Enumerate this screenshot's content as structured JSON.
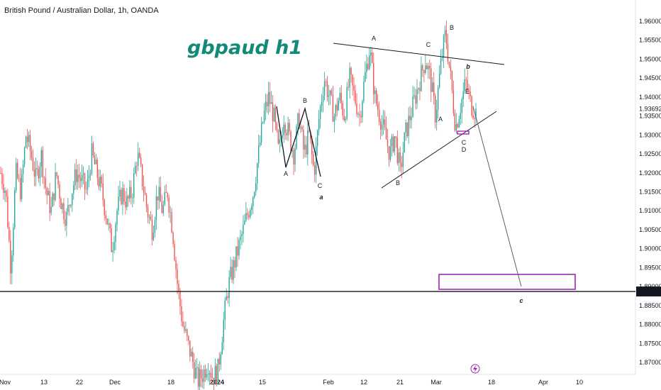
{
  "chart_data": {
    "type": "candlestick",
    "symbol_title": "British Pound / Australian Dollar, 1h, OANDA",
    "annotation_title": "gbpaud h1",
    "ylim": [
      1.865,
      1.962
    ],
    "y_ticks": [
      "1.96000",
      "1.95500",
      "1.95000",
      "1.94500",
      "1.94000",
      "1.93500",
      "1.93000",
      "1.92500",
      "1.92000",
      "1.91500",
      "1.91000",
      "1.90500",
      "1.90000",
      "1.89500",
      "1.89000",
      "1.88500",
      "1.88000",
      "1.87500",
      "1.87000"
    ],
    "y_tick_values": [
      1.96,
      1.955,
      1.95,
      1.945,
      1.94,
      1.935,
      1.93,
      1.925,
      1.92,
      1.915,
      1.91,
      1.905,
      1.9,
      1.895,
      1.89,
      1.885,
      1.88,
      1.875,
      1.87
    ],
    "x_ticks": [
      "Nov",
      "13",
      "22",
      "Dec",
      "18",
      "2024",
      "15",
      "Feb",
      "12",
      "21",
      "Mar",
      "18",
      "Apr",
      "10"
    ],
    "x_tick_bold": [
      false,
      false,
      false,
      false,
      false,
      true,
      false,
      false,
      false,
      false,
      false,
      false,
      false,
      false
    ],
    "current_price_label": "1.93692",
    "current_price": 1.93692,
    "horizontal_level_label": "1.88870",
    "horizontal_level": 1.8887,
    "path": [
      [
        1.92,
        1.915,
        1.895,
        1.92,
        1.915,
        1.93,
        1.925,
        1.918,
        1.925,
        1.915,
        1.91,
        1.92,
        1.912,
        1.908,
        1.915,
        1.92,
        1.918,
        1.915,
        1.925,
        1.92,
        1.915,
        1.908,
        1.9,
        1.91,
        1.915,
        1.912,
        1.915,
        1.925,
        1.918,
        1.91,
        1.905,
        1.915,
        1.91,
        1.915,
        1.905,
        1.89,
        1.88,
        1.875,
        1.87,
        1.865,
        1.867,
        1.87,
        1.866,
        1.868,
        1.88,
        1.89,
        1.895,
        1.9,
        1.905,
        1.91,
        1.915,
        1.925,
        1.935,
        1.94,
        1.935,
        1.925,
        1.935,
        1.93,
        1.925,
        1.935,
        1.925,
        1.93,
        1.92,
        1.935,
        1.945,
        1.94,
        1.935,
        1.94,
        1.935,
        1.945,
        1.94,
        1.935,
        1.945,
        1.953,
        1.94,
        1.935,
        1.93,
        1.925,
        1.93,
        1.92,
        1.93,
        1.935,
        1.94,
        1.945,
        1.95,
        1.945,
        1.935,
        1.948,
        1.957,
        1.945,
        1.932,
        1.938,
        1.944,
        1.938,
        1.936
      ]
    ],
    "wave_labels": {
      "left_A": "A",
      "left_B": "B",
      "left_C": "C",
      "a": "a",
      "tri_A": "A",
      "tri_B": "B",
      "tri_C": "C",
      "tri_D": "D",
      "tri_E": "E",
      "top_B": "B",
      "mid_A": "A",
      "b": "b",
      "c": "c"
    },
    "target_zone": [
      1.8893,
      1.8932
    ],
    "colors": {
      "up": "#26a69a",
      "down": "#ef5350",
      "wave_red": "#f23645",
      "wave_teal": "#138a78",
      "target": "#9c27b0",
      "line": "#131722"
    }
  }
}
